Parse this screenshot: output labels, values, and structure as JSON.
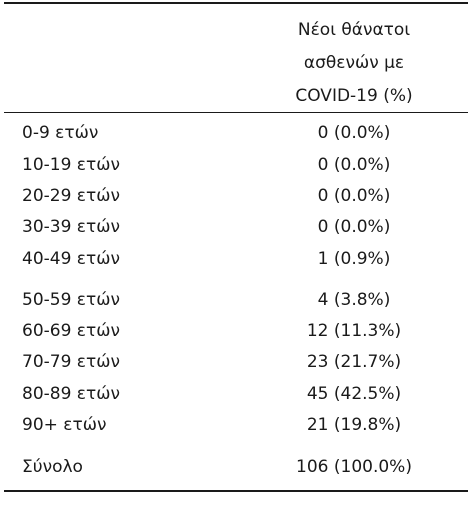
{
  "header": {
    "line1": "Νέοι θάνατοι",
    "line2": "ασθενών με",
    "line3": "COVID-19 (%)"
  },
  "rows": [
    {
      "label": "0-9 ετών",
      "value": "0 (0.0%)"
    },
    {
      "label": "10-19 ετών",
      "value": "0 (0.0%)"
    },
    {
      "label": "20-29 ετών",
      "value": "0 (0.0%)"
    },
    {
      "label": "30-39 ετών",
      "value": "0 (0.0%)"
    },
    {
      "label": "40-49 ετών",
      "value": "1 (0.9%)"
    },
    {
      "label": "50-59 ετών",
      "value": "4 (3.8%)"
    },
    {
      "label": "60-69 ετών",
      "value": "12 (11.3%)"
    },
    {
      "label": "70-79 ετών",
      "value": "23 (21.7%)"
    },
    {
      "label": "80-89 ετών",
      "value": "45 (42.5%)"
    },
    {
      "label": "90+ ετών",
      "value": "21 (19.8%)"
    }
  ],
  "total": {
    "label": "Σύνολο",
    "value": "106 (100.0%)"
  }
}
